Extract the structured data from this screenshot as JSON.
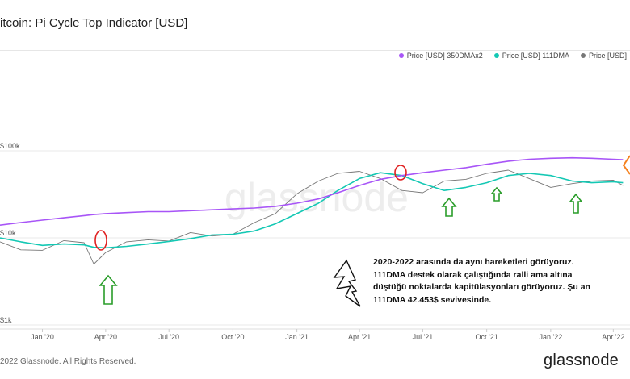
{
  "title": "itcoin: Pi Cycle Top Indicator [USD]",
  "legend": [
    {
      "label": "Price [USD] 350DMAx2",
      "color": "#a855f7"
    },
    {
      "label": "Price [USD] 111DMA",
      "color": "#14c8b4"
    },
    {
      "label": "Price [USD]",
      "color": "#777777"
    }
  ],
  "footer": "2022 Glassnode. All Rights Reserved.",
  "brand": "glassnode",
  "watermark": "glassnode",
  "annotation": "2020-2022 arasında da aynı hareketleri görüyoruz. 111DMA destek olarak çalıştığında ralli ama altına düştüğü noktalarda kapitülasyonları görüyoruz. Şu an 111DMA 42.453$ sevivesinde.",
  "icons": [
    "up-arrow-icon",
    "lightning-icon",
    "red-circle-marker",
    "orange-diamond-marker"
  ],
  "chart_data": {
    "type": "line",
    "yscale": "log",
    "ylim": [
      1000,
      200000
    ],
    "y_ticks": [
      {
        "value": 1000,
        "label": "$1k"
      },
      {
        "value": 10000,
        "label": "$10k"
      },
      {
        "value": 100000,
        "label": "$100k"
      }
    ],
    "x_ticks": [
      "Jan '20",
      "Apr '20",
      "Jul '20",
      "Oct '20",
      "Jan '21",
      "Apr '21",
      "Jul '21",
      "Oct '21",
      "Jan '22",
      "Apr '22"
    ],
    "x": [
      "2019-11-01",
      "2019-12-01",
      "2020-01-01",
      "2020-02-01",
      "2020-03-01",
      "2020-03-15",
      "2020-04-01",
      "2020-05-01",
      "2020-06-01",
      "2020-07-01",
      "2020-08-01",
      "2020-09-01",
      "2020-10-01",
      "2020-11-01",
      "2020-12-01",
      "2021-01-01",
      "2021-02-01",
      "2021-03-01",
      "2021-04-01",
      "2021-05-01",
      "2021-06-01",
      "2021-07-01",
      "2021-08-01",
      "2021-09-01",
      "2021-10-01",
      "2021-11-01",
      "2021-12-01",
      "2022-01-01",
      "2022-02-01",
      "2022-03-01",
      "2022-04-01",
      "2022-04-15"
    ],
    "series": [
      {
        "name": "Price [USD] 350DMAx2",
        "color": "#a855f7",
        "values": [
          14000,
          15000,
          16000,
          17000,
          18000,
          18500,
          19000,
          19500,
          20000,
          20000,
          20500,
          21000,
          21500,
          22000,
          23000,
          25000,
          28000,
          33000,
          40000,
          47000,
          52000,
          56000,
          60000,
          64000,
          70000,
          76000,
          80000,
          82000,
          83000,
          82000,
          80000,
          79000
        ]
      },
      {
        "name": "Price [USD] 111DMA",
        "color": "#14c8b4",
        "values": [
          10000,
          9000,
          8200,
          8500,
          8300,
          7800,
          7700,
          8000,
          8500,
          9100,
          9800,
          10800,
          11000,
          12000,
          14500,
          19000,
          25000,
          35000,
          48000,
          56000,
          52000,
          42000,
          35000,
          38000,
          43000,
          52000,
          55000,
          52000,
          45000,
          43000,
          44000,
          43000
        ]
      },
      {
        "name": "Price [USD]",
        "color": "#777777",
        "values": [
          9000,
          7300,
          7200,
          9300,
          8800,
          5000,
          6800,
          9000,
          9500,
          9200,
          11500,
          10500,
          11000,
          15000,
          19000,
          32000,
          45000,
          55000,
          58000,
          48000,
          35000,
          33000,
          45000,
          47000,
          55000,
          60000,
          48000,
          38000,
          42000,
          45000,
          46000,
          40000
        ]
      }
    ]
  }
}
